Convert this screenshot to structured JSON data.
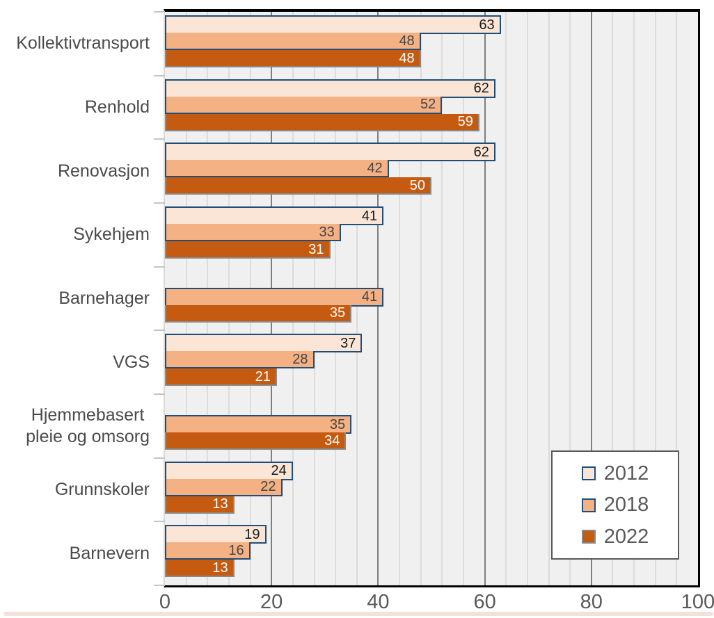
{
  "chart_data": {
    "type": "bar",
    "orientation": "horizontal",
    "title": "",
    "categories": [
      "Kollektivtransport",
      "Renhold",
      "Renovasjon",
      "Sykehjem",
      "Barnehager",
      "VGS",
      "Hjemmebasert\npleie og omsorg",
      "Grunnskoler",
      "Barnevern"
    ],
    "series": [
      {
        "name": "2012",
        "fill": "#FBE5D6",
        "border": "#1F4E79",
        "label_color": "#1a1a1a",
        "values": [
          63,
          62,
          62,
          41,
          null,
          37,
          null,
          24,
          19
        ]
      },
      {
        "name": "2018",
        "fill": "#F4B183",
        "border": "#1F4E79",
        "label_color": "#444444",
        "values": [
          48,
          52,
          42,
          33,
          41,
          28,
          35,
          22,
          16
        ]
      },
      {
        "name": "2022",
        "fill": "#C55A11",
        "border": "#8A8A8A",
        "label_color": "#FFFFFF",
        "values": [
          48,
          59,
          50,
          31,
          35,
          21,
          34,
          13,
          13
        ]
      }
    ],
    "x_axis": {
      "min": 0,
      "max": 100,
      "major_unit": 20,
      "minor_unit": 4,
      "tick_labels": [
        "0",
        "20",
        "40",
        "60",
        "80",
        "100"
      ]
    },
    "legend": {
      "position": "bottom-right",
      "entries": [
        "2012",
        "2018",
        "2022"
      ]
    },
    "grid": true,
    "plot_background": "#F0F0F0"
  }
}
